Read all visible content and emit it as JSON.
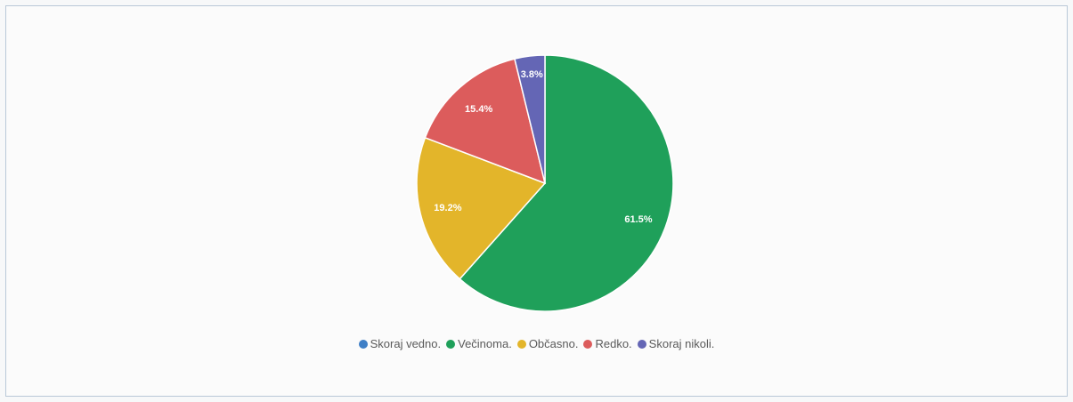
{
  "chart_data": {
    "type": "pie",
    "title": "",
    "start_angle_deg": 0,
    "direction": "clockwise",
    "slices": [
      {
        "label": "Skoraj vedno.",
        "value": 0.0,
        "display": "",
        "color": "#3f7fc6"
      },
      {
        "label": "Večinoma.",
        "value": 61.5,
        "display": "61.5%",
        "color": "#1fa05a"
      },
      {
        "label": "Občasno.",
        "value": 19.2,
        "display": "19.2%",
        "color": "#e3b52a"
      },
      {
        "label": "Redko.",
        "value": 15.4,
        "display": "15.4%",
        "color": "#dc5c5c"
      },
      {
        "label": "Skoraj nikoli.",
        "value": 3.8,
        "display": "3.8%",
        "color": "#6466b5"
      }
    ],
    "legend_position": "bottom"
  }
}
